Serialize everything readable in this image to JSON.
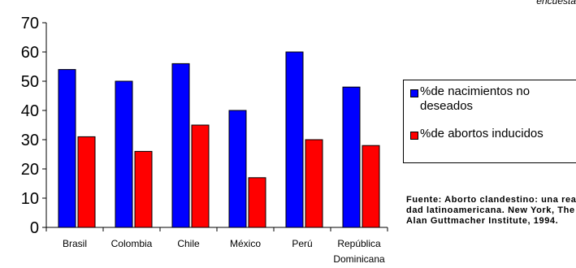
{
  "corner_text": "encuesta",
  "chart_data": {
    "type": "bar",
    "categories": [
      [
        "Brasil"
      ],
      [
        "Colombia"
      ],
      [
        "Chile"
      ],
      [
        "México"
      ],
      [
        "Perú"
      ],
      [
        "República",
        "Dominicana"
      ]
    ],
    "series": [
      {
        "name": "%de nacimientos no deseados",
        "color": "#0000ff",
        "values": [
          54,
          50,
          56,
          40,
          60,
          48
        ]
      },
      {
        "name": "%de abortos inducidos",
        "color": "#ff0000",
        "values": [
          31,
          26,
          35,
          17,
          30,
          28
        ]
      }
    ],
    "yticks": [
      "0",
      "10",
      "20",
      "30",
      "40",
      "50",
      "60",
      "70"
    ],
    "ylim": [
      0,
      70
    ],
    "legend_position": "right"
  },
  "legend": {
    "item1_line1": "%de nacimientos no",
    "item1_line2": "deseados",
    "item2": "%de abortos inducidos"
  },
  "source": {
    "line1": "Fuente: Aborto clandestino: una reali-",
    "line2": "dad latinoamericana. New York, The",
    "line3": "Alan Guttmacher Institute, 1994."
  }
}
